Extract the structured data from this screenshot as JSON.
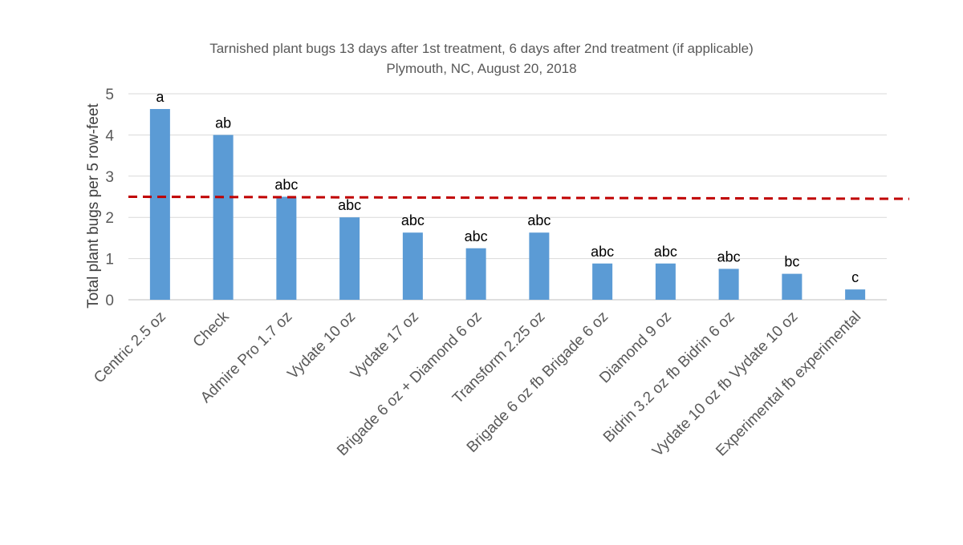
{
  "chart_data": {
    "type": "bar",
    "title": "Tarnished  plant bugs 13 days after 1st treatment, 6 days after 2nd treatment (if applicable)",
    "subtitle": "Plymouth, NC, August 20, 2018",
    "ylabel": "Total plant bugs per 5 row-feet",
    "xlabel": "",
    "ylim": [
      0,
      5
    ],
    "yticks": [
      0,
      1,
      2,
      3,
      4,
      5
    ],
    "grid": true,
    "bar_color": "#5b9bd5",
    "categories": [
      "Centric 2.5 oz",
      "Check",
      "Admire Pro 1.7 oz",
      "Vydate 10 oz",
      "Vydate 17 oz",
      "Brigade 6 oz + Diamond 6 oz",
      "Transform 2.25 oz",
      "Brigade 6 oz fb Brigade 6 oz",
      "Diamond 9 oz",
      "Bidrin 3.2 oz fb Bidrin 6 oz",
      "Vydate 10 oz fb Vydate 10 oz",
      "Experimental fb experimental"
    ],
    "values": [
      4.63,
      4.0,
      2.5,
      2.0,
      1.63,
      1.25,
      1.63,
      0.88,
      0.88,
      0.75,
      0.63,
      0.25
    ],
    "data_labels": [
      "a",
      "ab",
      "abc",
      "abc",
      "abc",
      "abc",
      "abc",
      "abc",
      "abc",
      "abc",
      "bc",
      "c"
    ],
    "threshold_line": {
      "style": "dashed",
      "color": "#c00000",
      "y_start": 2.5,
      "y_end": 2.45
    }
  }
}
